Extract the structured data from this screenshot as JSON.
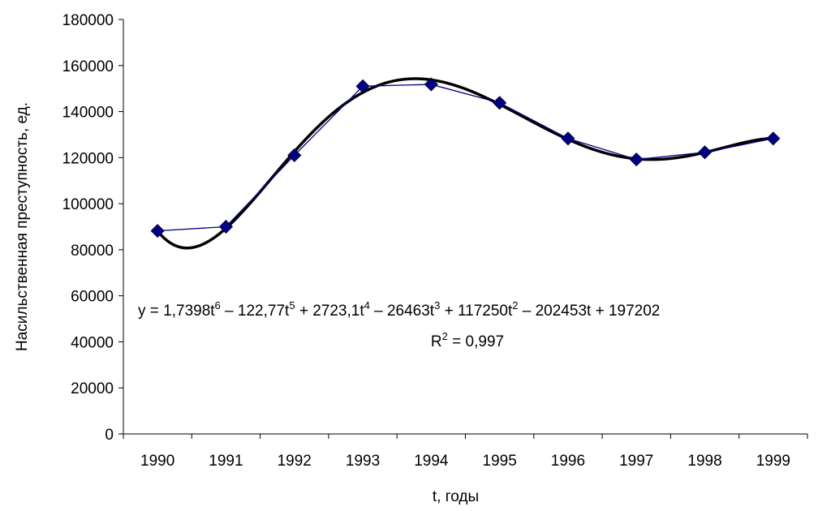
{
  "chart_data": {
    "type": "line",
    "title": "",
    "xlabel": "t, годы",
    "ylabel": "Насильственная преступность, ед.",
    "categories": [
      "1990",
      "1991",
      "1992",
      "1993",
      "1994",
      "1995",
      "1996",
      "1997",
      "1998",
      "1999"
    ],
    "y_ticks": [
      "0",
      "20000",
      "40000",
      "60000",
      "80000",
      "100000",
      "120000",
      "140000",
      "160000",
      "180000"
    ],
    "ylim": [
      0,
      180000
    ],
    "grid": false,
    "legend": "none",
    "series": [
      {
        "values": [
          88200,
          90000,
          121000,
          151000,
          151800,
          143800,
          128300,
          119200,
          122300,
          128300
        ],
        "color": "#000080",
        "marker": "diamond",
        "marker_color": "#000080"
      }
    ],
    "trendline": {
      "type": "polynomial",
      "order": 6,
      "coefficients": [
        1.7398,
        -122.77,
        2723.1,
        -26463,
        117250,
        -202453,
        197202
      ],
      "color": "#000000"
    },
    "annotations": {
      "equation_parts": [
        {
          "text": "y = 1,7398t",
          "sup": "6"
        },
        {
          "text": " – 122,77t",
          "sup": "5"
        },
        {
          "text": " + 2723,1t",
          "sup": "4"
        },
        {
          "text": " – 26463t",
          "sup": "3"
        },
        {
          "text": " + 117250t",
          "sup": "2"
        },
        {
          "text": " – 202453t + 197202",
          "sup": ""
        }
      ],
      "r_squared_parts": [
        {
          "text": "R",
          "sup": "2"
        },
        {
          "text": " = 0,997",
          "sup": ""
        }
      ]
    }
  }
}
